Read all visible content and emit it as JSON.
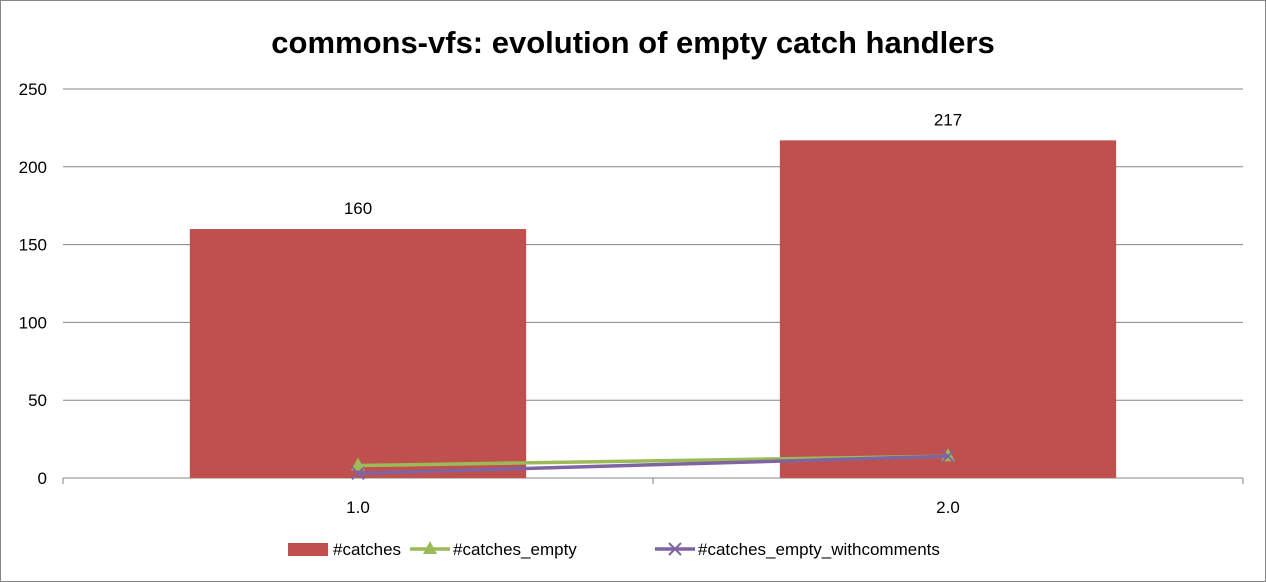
{
  "chart_data": {
    "type": "bar",
    "title": "commons-vfs: evolution of empty catch handlers",
    "xlabel": "",
    "ylabel": "",
    "categories": [
      "1.0",
      "2.0"
    ],
    "ylim": [
      0,
      250
    ],
    "y_ticks": [
      0,
      50,
      100,
      150,
      200,
      250
    ],
    "y_tick_labels": [
      "0",
      "50",
      "100",
      "150",
      "200",
      "250"
    ],
    "grid": true,
    "legend_position": "bottom",
    "series": [
      {
        "name": "#catches",
        "kind": "bar",
        "color": "#C0504D",
        "values": [
          160,
          217
        ],
        "data_labels": [
          "160",
          "217"
        ]
      },
      {
        "name": "#catches_empty",
        "kind": "line",
        "marker": "triangle",
        "color": "#9BBB59",
        "values": [
          8,
          14
        ]
      },
      {
        "name": "#catches_empty_withcomments",
        "kind": "line",
        "marker": "x",
        "color": "#8064A2",
        "values": [
          3,
          14
        ]
      }
    ]
  }
}
